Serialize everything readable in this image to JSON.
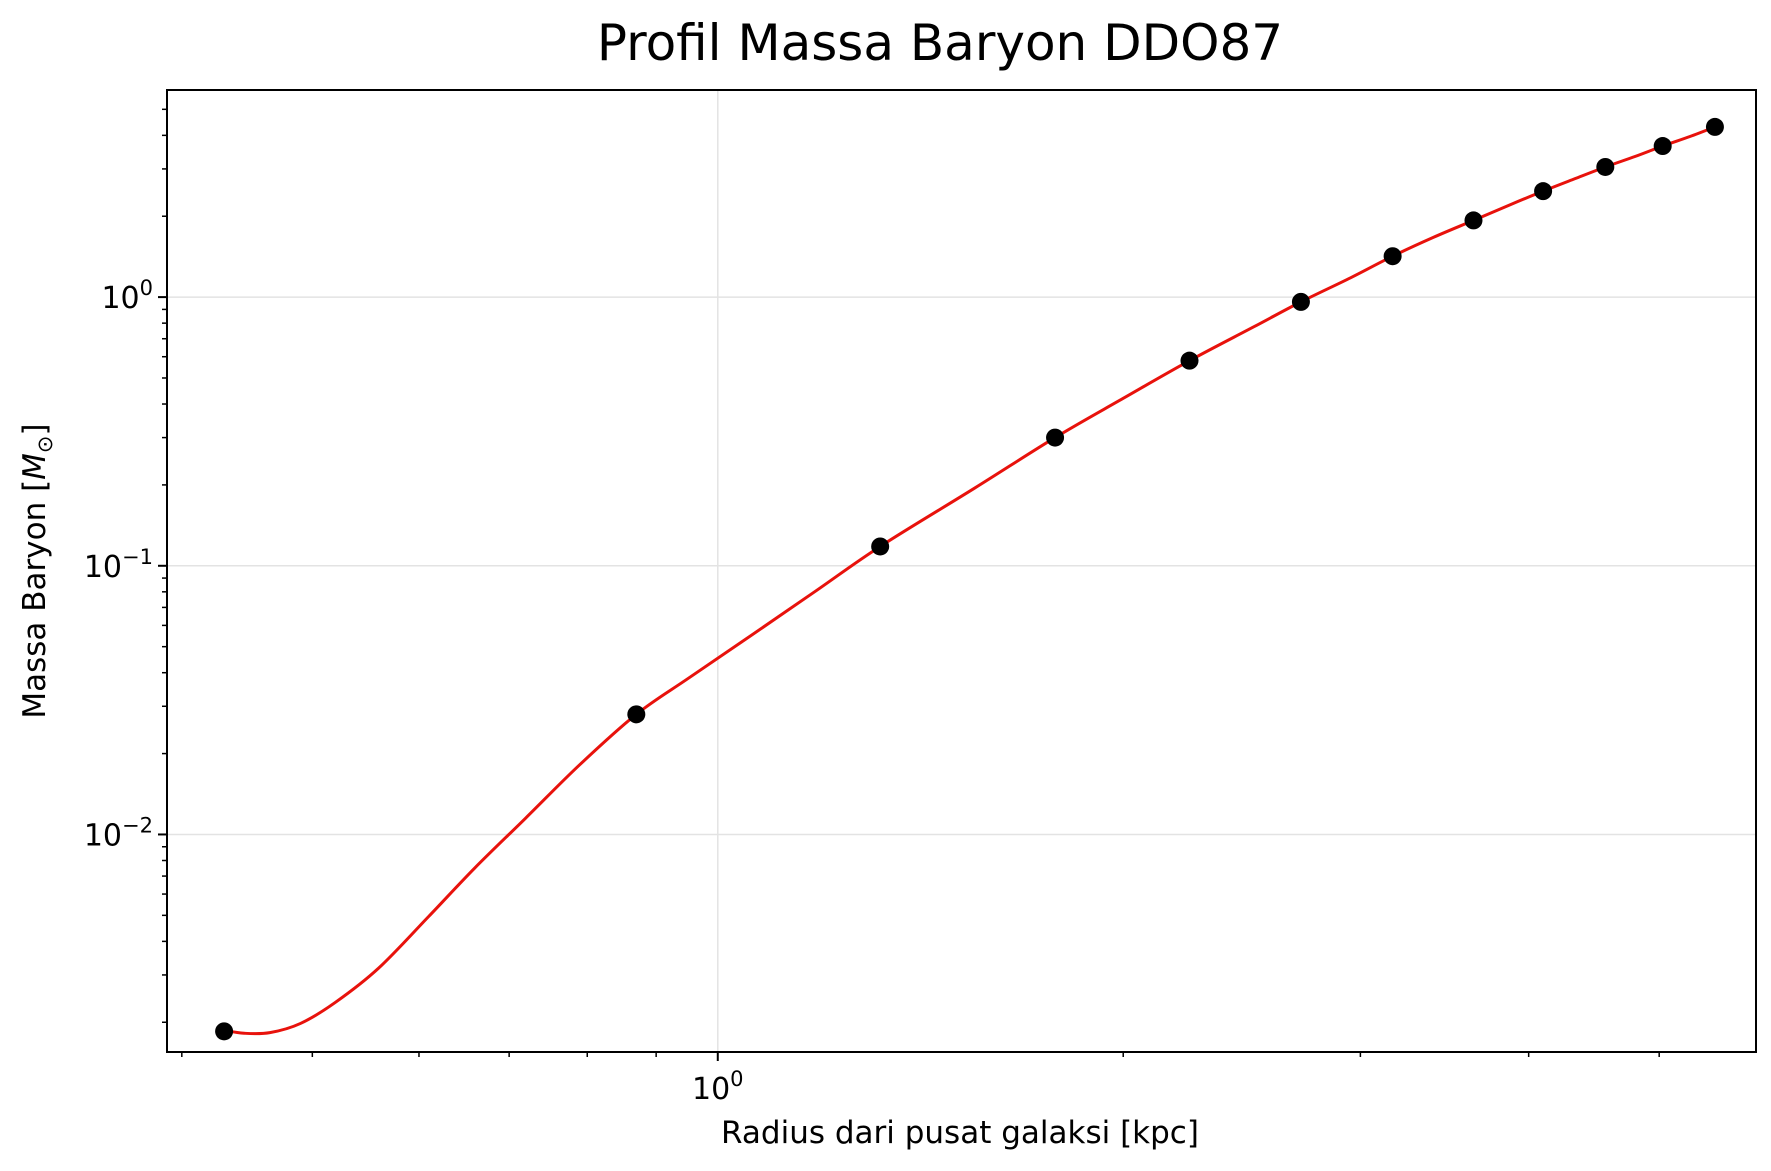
{
  "chart_data": {
    "type": "scatter",
    "title": "Profil Massa Baryon DDO87",
    "xlabel": "Radius dari pusat galaksi [kpc]",
    "ylabel": {
      "text": "Massa Baryon [",
      "symbol": "M",
      "subscript": "⊙",
      "suffix": "]"
    },
    "xscale": "log",
    "yscale": "log",
    "xlim": [
      0.39,
      5.9
    ],
    "ylim": [
      0.00155,
      5.9
    ],
    "grid": true,
    "legend": "none",
    "x_ticks": [
      {
        "value": 1,
        "base": "10",
        "exp": "0"
      }
    ],
    "y_ticks": [
      {
        "value": 0.01,
        "base": "10",
        "exp": "−2"
      },
      {
        "value": 0.1,
        "base": "10",
        "exp": "−1"
      },
      {
        "value": 1,
        "base": "10",
        "exp": "0"
      }
    ],
    "series": [
      {
        "kind": "points",
        "color": "#000000",
        "x": [
          0.43,
          0.87,
          1.32,
          1.78,
          2.24,
          2.71,
          3.17,
          3.64,
          4.1,
          4.56,
          5.03,
          5.5
        ],
        "y": [
          0.00185,
          0.028,
          0.118,
          0.3,
          0.58,
          0.96,
          1.42,
          1.93,
          2.48,
          3.05,
          3.65,
          4.3
        ]
      },
      {
        "kind": "line",
        "color": "#e8120c",
        "x": [
          0.43,
          0.445,
          0.465,
          0.49,
          0.52,
          0.56,
          0.61,
          0.66,
          0.72,
          0.79,
          0.87,
          0.95,
          1.05,
          1.18,
          1.32,
          1.55,
          1.78,
          2.0,
          2.24,
          2.5,
          2.71,
          2.95,
          3.17,
          3.4,
          3.64,
          3.87,
          4.1,
          4.33,
          4.56,
          4.8,
          5.03,
          5.27,
          5.5
        ],
        "y": [
          0.00187,
          0.00182,
          0.00183,
          0.00198,
          0.00237,
          0.00318,
          0.00495,
          0.0075,
          0.0115,
          0.0182,
          0.028,
          0.038,
          0.0535,
          0.08,
          0.118,
          0.194,
          0.3,
          0.42,
          0.58,
          0.775,
          0.96,
          1.18,
          1.42,
          1.67,
          1.93,
          2.2,
          2.48,
          2.76,
          3.05,
          3.34,
          3.65,
          3.96,
          4.3
        ]
      }
    ]
  }
}
